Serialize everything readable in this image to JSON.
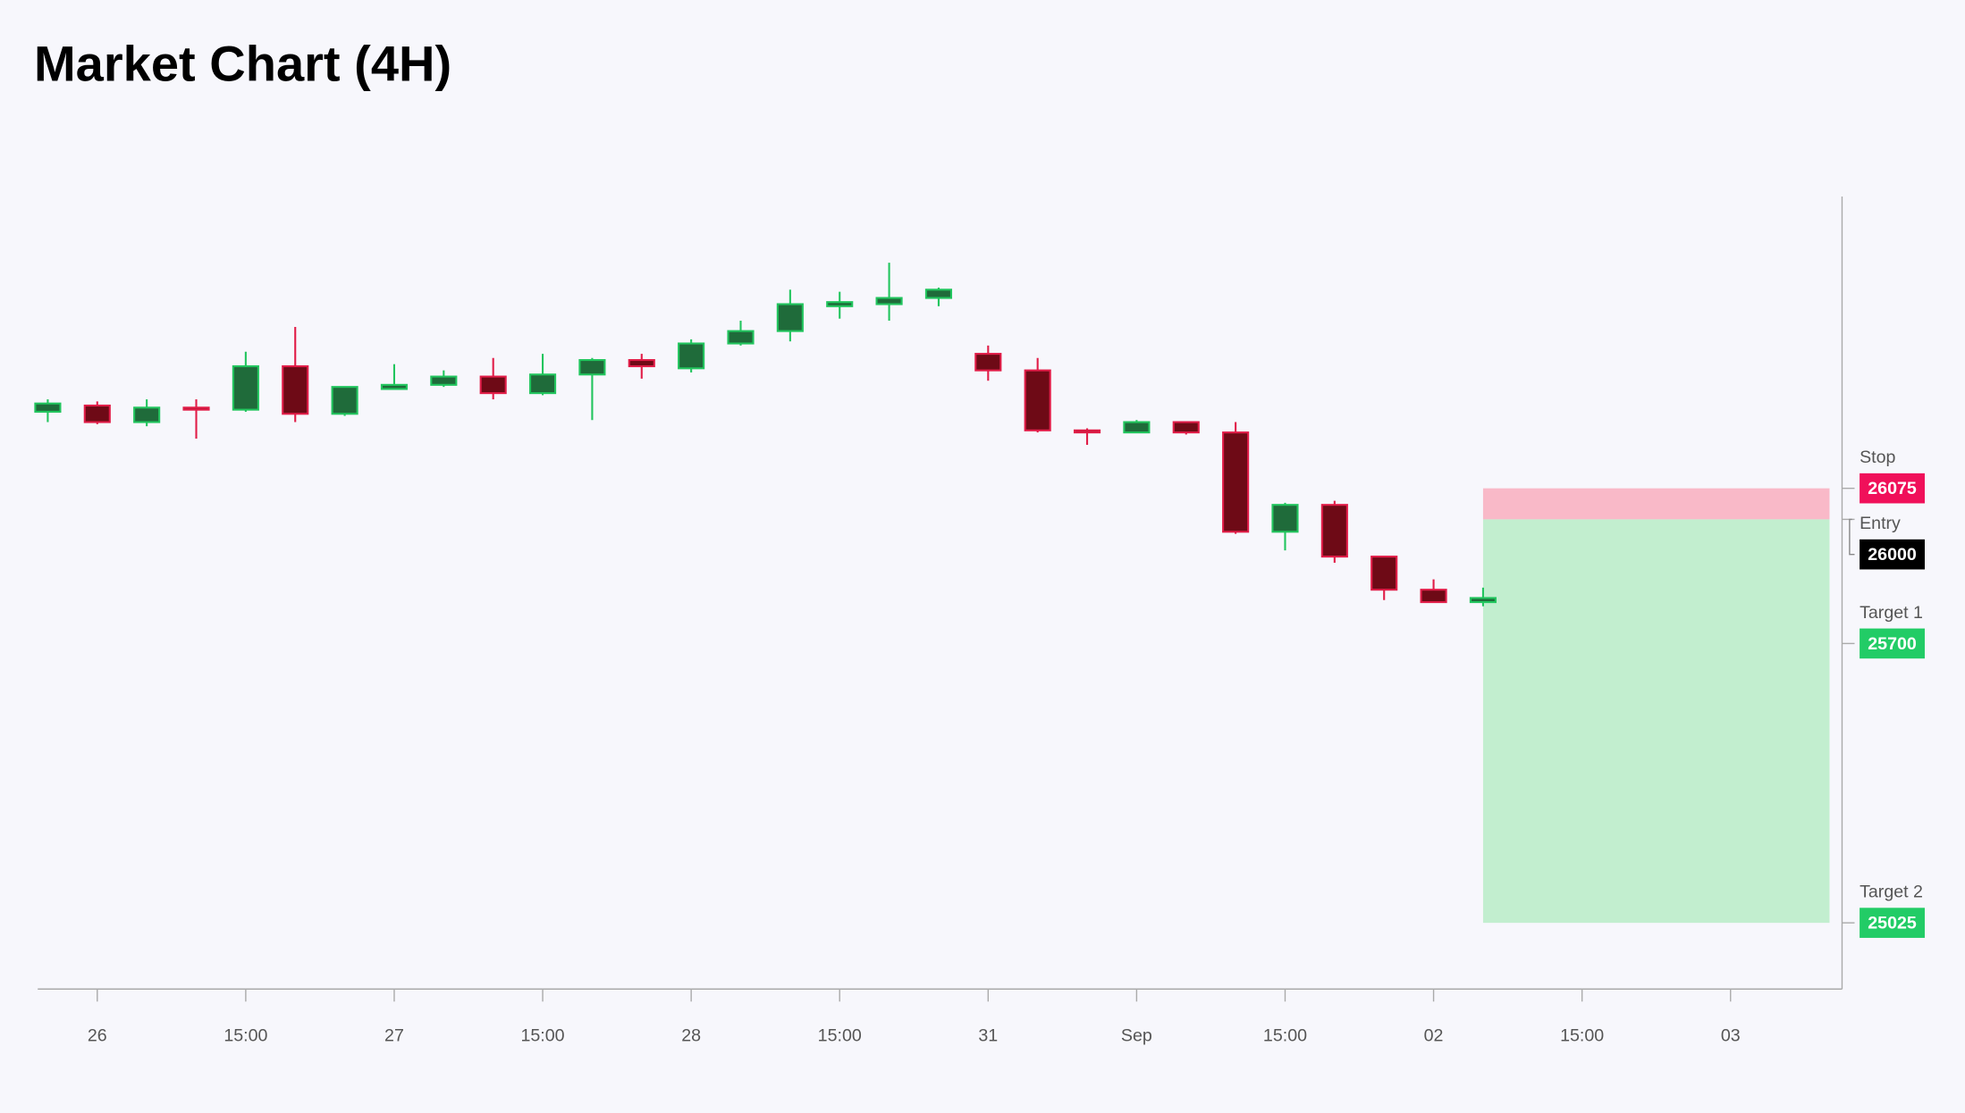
{
  "chart_data": {
    "type": "candlestick",
    "title": "Market Chart (4H)",
    "categories": [
      null,
      "26",
      null,
      null,
      "15:00",
      null,
      null,
      "27",
      null,
      null,
      "15:00",
      null,
      null,
      "28",
      null,
      null,
      "15:00",
      null,
      null,
      "31",
      null,
      null,
      "Sep",
      null,
      null,
      "15:00",
      null,
      null,
      "02",
      null,
      null,
      "15:00",
      null,
      null,
      "03",
      null,
      null
    ],
    "open": [
      26260,
      26275,
      26235,
      26270,
      26265,
      26370,
      26255,
      26315,
      26325,
      26345,
      26305,
      26350,
      26385,
      26365,
      26425,
      26455,
      26515,
      26520,
      26535,
      26400,
      26360,
      26215,
      26210,
      26235,
      26210,
      25970,
      26035,
      25910,
      25830,
      25800,
      null,
      null,
      null,
      null,
      null,
      null,
      null
    ],
    "high": [
      26290,
      26285,
      26290,
      26290,
      26405,
      26465,
      26320,
      26375,
      26360,
      26390,
      26400,
      26390,
      26400,
      26435,
      26480,
      26555,
      26550,
      26620,
      26560,
      26420,
      26390,
      26220,
      26240,
      26235,
      26235,
      26040,
      26045,
      25910,
      25855,
      25835,
      null,
      null,
      null,
      null,
      null,
      null,
      null
    ],
    "low": [
      26235,
      26230,
      26225,
      26195,
      26260,
      26235,
      26250,
      26315,
      26320,
      26290,
      26300,
      26240,
      26340,
      26355,
      26420,
      26430,
      26485,
      26480,
      26515,
      26335,
      26210,
      26180,
      26210,
      26205,
      25965,
      25925,
      25895,
      25805,
      25800,
      25790,
      null,
      null,
      null,
      null,
      null,
      null,
      null
    ],
    "close": [
      26280,
      26235,
      26270,
      26265,
      26370,
      26255,
      26320,
      26325,
      26345,
      26305,
      26350,
      26385,
      26370,
      26425,
      26455,
      26520,
      26525,
      26535,
      26555,
      26360,
      26215,
      26210,
      26235,
      26210,
      25970,
      26035,
      25910,
      25830,
      25800,
      25810,
      null,
      null,
      null,
      null,
      null,
      null,
      null
    ],
    "up_color": "#22c55e",
    "down_color": "#e11d48",
    "ylim": [
      24865,
      26780
    ],
    "levels": [
      {
        "name": "Stop",
        "value": 26075,
        "color": "#f0105a"
      },
      {
        "name": "Entry",
        "value": 26000,
        "color": "#000000"
      },
      {
        "name": "Target 1",
        "value": 25700,
        "color": "#22cc66"
      },
      {
        "name": "Target 2",
        "value": 25025,
        "color": "#22cc66"
      }
    ]
  }
}
